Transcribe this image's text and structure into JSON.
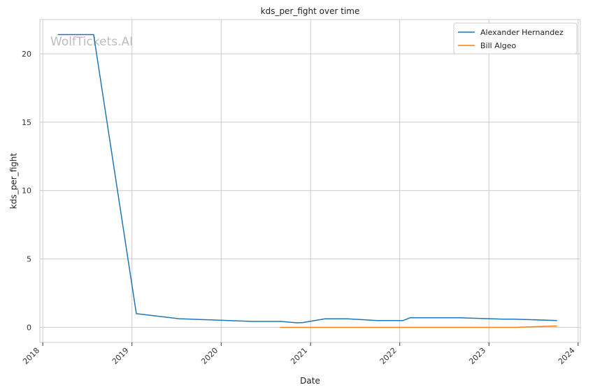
{
  "chart_data": {
    "type": "line",
    "title": "kds_per_fight over time",
    "xlabel": "Date",
    "ylabel": "kds_per_fight",
    "watermark": "WolfTickets.AI",
    "x_range": [
      "2017-12-20",
      "2024-01-10"
    ],
    "ylim": [
      -1.1,
      22.5
    ],
    "x_ticks": [
      "2018",
      "2019",
      "2020",
      "2021",
      "2022",
      "2023",
      "2024"
    ],
    "y_ticks": [
      0,
      5,
      10,
      15,
      20
    ],
    "grid": true,
    "legend_position": "top-right",
    "series": [
      {
        "name": "Alexander Hernandez",
        "color": "#1f77b4",
        "points": [
          [
            "2018-03-03",
            21.4
          ],
          [
            "2018-07-28",
            21.4
          ],
          [
            "2019-01-19",
            1.0
          ],
          [
            "2019-07-13",
            0.63
          ],
          [
            "2020-05-09",
            0.43
          ],
          [
            "2020-09-01",
            0.43
          ],
          [
            "2020-11-07",
            0.33
          ],
          [
            "2020-12-01",
            0.35
          ],
          [
            "2021-03-01",
            0.62
          ],
          [
            "2021-06-01",
            0.62
          ],
          [
            "2021-10-01",
            0.5
          ],
          [
            "2022-01-15",
            0.5
          ],
          [
            "2022-02-12",
            0.7
          ],
          [
            "2022-09-01",
            0.7
          ],
          [
            "2023-03-01",
            0.6
          ],
          [
            "2023-04-15",
            0.6
          ],
          [
            "2023-10-07",
            0.5
          ]
        ]
      },
      {
        "name": "Bill Algeo",
        "color": "#ff7f0e",
        "points": [
          [
            "2020-08-29",
            0.0
          ],
          [
            "2023-04-15",
            0.0
          ],
          [
            "2023-10-07",
            0.1
          ]
        ]
      }
    ]
  }
}
